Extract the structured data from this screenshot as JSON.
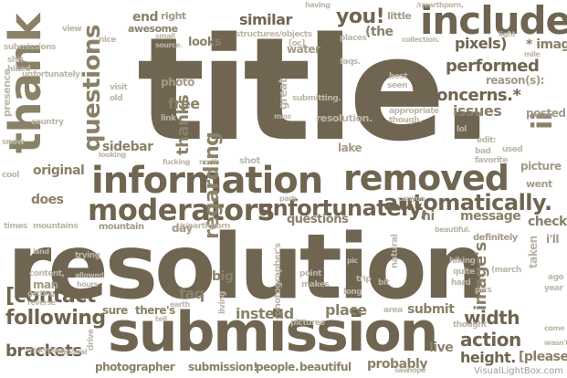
{
  "words": {
    "title": "title.",
    "resolution": "resolution",
    "submission": "submission",
    "information": "information",
    "removed": "removed",
    "thank": "thank",
    "include": "include",
    "moderators": "moderators",
    "unfortunately": "unfortunately,",
    "automatically": "automatically.",
    "questions": "questions",
    "performed": "performed",
    "concerns": "concerns.*",
    "you": "you!",
    "similar": "similar",
    "end": "end",
    "right": "right",
    "awesome": "awesome",
    "looks": "looks",
    "free": "free",
    "photo": "photo",
    "sidebar": "sidebar",
    "original": "original",
    "does": "does",
    "contact": "[contact",
    "following": "following",
    "brackets": "brackets",
    "photographer": "photographer",
    "submission2": "submission!",
    "people": "people.",
    "beautiful": "beautiful",
    "probably": "probably",
    "action": "action",
    "height": "height.",
    "please": "[please",
    "width": "width",
    "live": "live",
    "submit": "submit",
    "place": "place",
    "instead": "instead",
    "sure": "sure",
    "theres": "there's",
    "faq": "faq",
    "big": "big",
    "message": "message",
    "check": "check",
    "imagess": "image's",
    "pixels": "pixels)",
    "image": "* image",
    "issues": "issues",
    "regarding": "regarding",
    "thanks": "thanks",
    "the": "(the",
    "posted": "posted",
    "picture": "picture",
    "lake": "lake",
    "great": "great",
    "water": "water",
    "mountain": "mountain",
    "day": "day",
    "went": "went",
    "hi": "hi",
    "ill": "i'll",
    "reasons": "reason(s):",
    "little": "little",
    "photographers": "photographer's",
    "man": "man",
    "content": "content,",
    "taken": "taken",
    "definitely": "definitely",
    "ii": "ii",
    "visit": "visit",
    "link": "link",
    "north": "north",
    "snow": "snow",
    "times": "times",
    "mountains": "mountains",
    "land": "land",
    "trying": "trying",
    "allowed": "allowed",
    "hours": "hours",
    "getting": "getting",
    "reverse": "reverse",
    "earth": "earth",
    "hiking": "hiking",
    "quite": "quite",
    "hard": "hard",
    "march": "(march",
    "looking": "looking",
    "small": "small",
    "source": "source.",
    "old": "old",
    "faqs": "faqs.",
    "places": "places",
    "collection": "collection.",
    "appropriate": "appropriate",
    "though": "though.",
    "best": "best",
    "seen": "seen",
    "lol": "lol",
    "edit": "edit:",
    "bad": "bad",
    "used": "used",
    "favorite": "favorite",
    "cool": "cool",
    "country": "country",
    "unfortunately2": "unfortunately",
    "presence": "presence",
    "shit": "shit",
    "hiked": "hiked",
    "submissions": "submissions",
    "nice": "nice",
    "view": "view",
    "shot": "shot",
    "park": "park",
    "fucking": "fucking",
    "canyon": "canyon",
    "beautiful2": "beautiful.",
    "natural": "natural",
    "pic": "pic",
    "trip": "trip",
    "bit": "bit",
    "long": "long",
    "point": "point",
    "makes": "makes",
    "living": "living",
    "area": "area",
    "thought": "thought",
    "pictures": "pictures",
    "national": "national",
    "skyporn": "/r/skyporn.",
    "earthporn": "/r/earthporn",
    "earthporn2": "/r/earthporn,",
    "structures": "structures/objects",
    "oc": "[oc]",
    "submitting": "submitting.",
    "resolution2": "resolution.",
    "pics": "pics",
    "having": "having",
    "ago": "ago",
    "year": "year",
    "come": "come",
    "wasnt": "wasn't",
    "hope": "hope",
    "saw": "saw",
    "drive": "drive",
    "tell": "tell",
    "mile": "mile",
    "miss": "miss",
    "light": "light",
    "credit": "VisualLightBox.com"
  }
}
